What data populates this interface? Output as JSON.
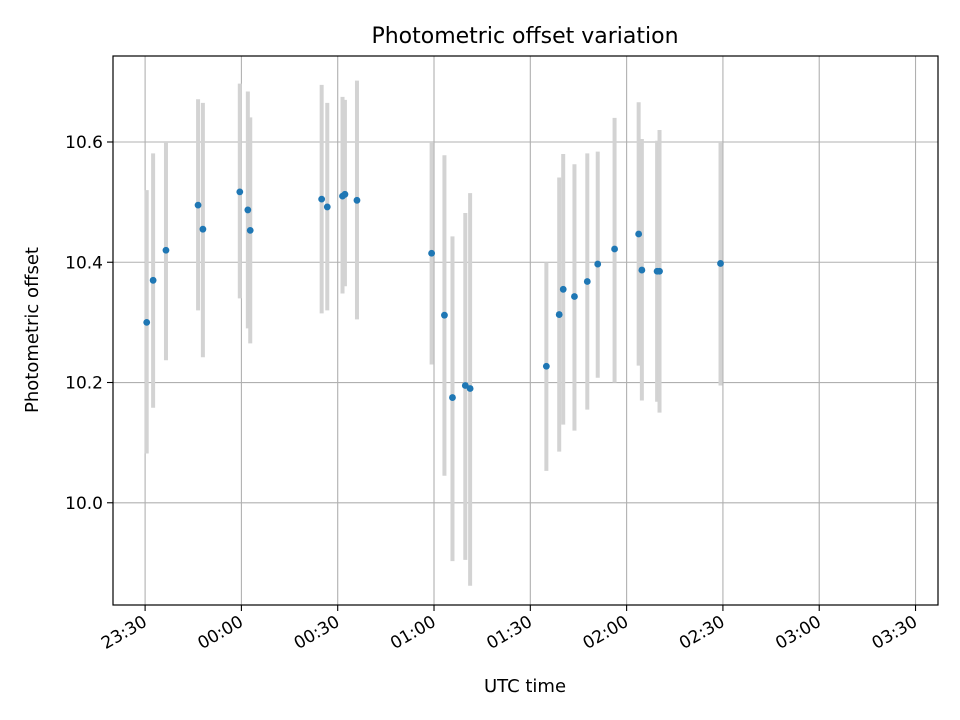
{
  "chart_data": {
    "type": "scatter",
    "title": "Photometric offset variation",
    "xlabel": "UTC time",
    "ylabel": "Photometric offset",
    "x_ticks": [
      "23:30",
      "00:00",
      "00:30",
      "01:00",
      "01:30",
      "02:00",
      "02:30",
      "03:00",
      "03:30"
    ],
    "y_ticks": [
      "10.0",
      "10.2",
      "10.4",
      "10.6"
    ],
    "xlim": [
      "23:20",
      "03:37"
    ],
    "ylim": [
      9.83,
      10.743
    ],
    "grid": true,
    "legend": "none",
    "colors": {
      "point": "#1f77b4",
      "error_bar": "#d3d3d3",
      "grid": "#b0b0b0"
    },
    "points": [
      {
        "x": "23:30:30",
        "y": 10.3,
        "err_low": 10.082,
        "err_high": 10.52
      },
      {
        "x": "23:32:30",
        "y": 10.37,
        "err_low": 10.158,
        "err_high": 10.581
      },
      {
        "x": "23:36:30",
        "y": 10.42,
        "err_low": 10.237,
        "err_high": 10.6
      },
      {
        "x": "23:46:30",
        "y": 10.495,
        "err_low": 10.32,
        "err_high": 10.671
      },
      {
        "x": "23:48:00",
        "y": 10.455,
        "err_low": 10.242,
        "err_high": 10.665
      },
      {
        "x": "23:59:30",
        "y": 10.517,
        "err_low": 10.34,
        "err_high": 10.697
      },
      {
        "x": "00:02:00",
        "y": 10.487,
        "err_low": 10.29,
        "err_high": 10.684
      },
      {
        "x": "00:02:45",
        "y": 10.453,
        "err_low": 10.265,
        "err_high": 10.641
      },
      {
        "x": "00:25:00",
        "y": 10.505,
        "err_low": 10.315,
        "err_high": 10.695
      },
      {
        "x": "00:26:45",
        "y": 10.492,
        "err_low": 10.32,
        "err_high": 10.665
      },
      {
        "x": "00:31:30",
        "y": 10.51,
        "err_low": 10.348,
        "err_high": 10.675
      },
      {
        "x": "00:32:15",
        "y": 10.513,
        "err_low": 10.36,
        "err_high": 10.67
      },
      {
        "x": "00:36:00",
        "y": 10.503,
        "err_low": 10.305,
        "err_high": 10.702
      },
      {
        "x": "00:59:15",
        "y": 10.415,
        "err_low": 10.23,
        "err_high": 10.6
      },
      {
        "x": "01:03:15",
        "y": 10.312,
        "err_low": 10.045,
        "err_high": 10.578
      },
      {
        "x": "01:05:45",
        "y": 10.175,
        "err_low": 9.903,
        "err_high": 10.443
      },
      {
        "x": "01:09:45",
        "y": 10.195,
        "err_low": 9.905,
        "err_high": 10.482
      },
      {
        "x": "01:11:15",
        "y": 10.19,
        "err_low": 9.862,
        "err_high": 10.515
      },
      {
        "x": "01:35:00",
        "y": 10.227,
        "err_low": 10.053,
        "err_high": 10.4
      },
      {
        "x": "01:39:00",
        "y": 10.313,
        "err_low": 10.085,
        "err_high": 10.541
      },
      {
        "x": "01:40:15",
        "y": 10.355,
        "err_low": 10.13,
        "err_high": 10.58
      },
      {
        "x": "01:43:45",
        "y": 10.343,
        "err_low": 10.12,
        "err_high": 10.563
      },
      {
        "x": "01:47:45",
        "y": 10.368,
        "err_low": 10.155,
        "err_high": 10.581
      },
      {
        "x": "01:51:00",
        "y": 10.397,
        "err_low": 10.208,
        "err_high": 10.584
      },
      {
        "x": "01:56:15",
        "y": 10.422,
        "err_low": 10.2,
        "err_high": 10.64
      },
      {
        "x": "02:03:45",
        "y": 10.447,
        "err_low": 10.228,
        "err_high": 10.666
      },
      {
        "x": "02:04:45",
        "y": 10.387,
        "err_low": 10.17,
        "err_high": 10.605
      },
      {
        "x": "02:09:30",
        "y": 10.385,
        "err_low": 10.168,
        "err_high": 10.602
      },
      {
        "x": "02:10:15",
        "y": 10.385,
        "err_low": 10.15,
        "err_high": 10.62
      },
      {
        "x": "02:29:15",
        "y": 10.398,
        "err_low": 10.195,
        "err_high": 10.6
      }
    ]
  }
}
